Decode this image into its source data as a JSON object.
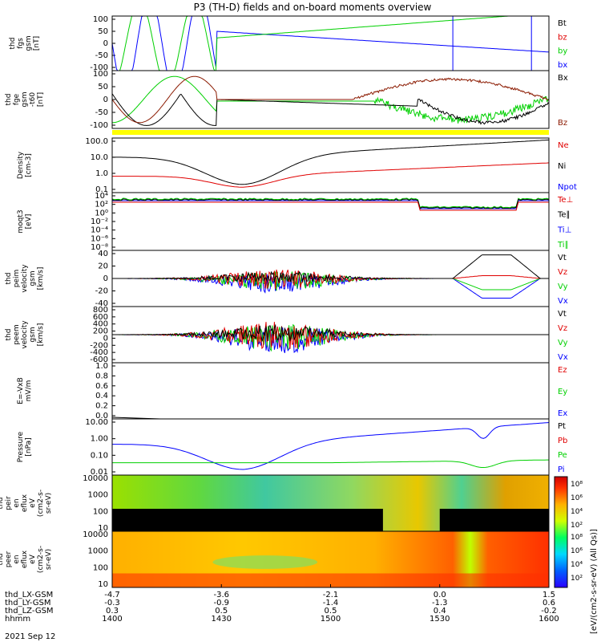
{
  "title": "P3 (TH-D) fields and on-board moments overview",
  "date": "2021 Sep 12",
  "colors": {
    "black": "#000000",
    "red": "#e00000",
    "green": "#00d000",
    "blue": "#0000ff",
    "yellow": "#ffff00",
    "darkred": "#8b1a00"
  },
  "chart_data": {
    "type": "line",
    "x_ticks": [
      "1400",
      "1430",
      "1500",
      "1530",
      "1600"
    ],
    "x_row_labels": [
      "thd_LX-GSM",
      "thd_LY-GSM",
      "thd_LZ-GSM",
      "hhmm"
    ],
    "x_rows": [
      [
        "-4.7",
        "-3.6",
        "-2.1",
        "0.0",
        "1.5"
      ],
      [
        "-0.3",
        "-0.9",
        "-1.4",
        "-1.3",
        "0.6"
      ],
      [
        "0.3",
        "0.5",
        "0.5",
        "0.4",
        "-0.2"
      ],
      [
        "1400",
        "1430",
        "1500",
        "1530",
        "1600"
      ]
    ],
    "panels": [
      {
        "id": "fgs",
        "ylabel": [
          "thd",
          "fgs",
          "gsm",
          "[nT]"
        ],
        "yticks": [
          "100",
          "50",
          "0",
          "-50",
          "-100"
        ],
        "ylim": [
          -100,
          100
        ],
        "legend": [
          {
            "name": "Bt",
            "color": "#000000"
          },
          {
            "name": "bz",
            "color": "#e00000"
          },
          {
            "name": "by",
            "color": "#00d000"
          },
          {
            "name": "bx",
            "color": "#0000ff"
          }
        ]
      },
      {
        "id": "fge",
        "ylabel": [
          "thd",
          "fge",
          "gsm",
          "-t60",
          "[nT]"
        ],
        "yticks": [
          "100",
          "50",
          "0",
          "-50",
          "-100"
        ],
        "ylim": [
          -125,
          125
        ],
        "legend": [
          {
            "name": "Bx",
            "color": "#000000"
          },
          {
            "name": "Bz",
            "color": "#8b1a00"
          }
        ]
      },
      {
        "id": "density",
        "ylabel": [
          "Density",
          "[cm-3]"
        ],
        "yticks": [
          "100.0",
          "10.0",
          "1.0",
          "0.1"
        ],
        "ylim": [
          0.1,
          200
        ],
        "log": true,
        "legend": [
          {
            "name": "Ne",
            "color": "#e00000"
          },
          {
            "name": "Ni",
            "color": "#000000"
          },
          {
            "name": "Npot",
            "color": "#0000ff"
          }
        ]
      },
      {
        "id": "temp",
        "ylabel": [
          "moqt3",
          "[eV]"
        ],
        "yticks": [
          "10⁴",
          "10²",
          "10⁰",
          "10⁻²",
          "10⁻⁴",
          "10⁻⁶",
          "10⁻⁸"
        ],
        "log": true,
        "legend": [
          {
            "name": "Te⊥",
            "color": "#e00000"
          },
          {
            "name": "Te∥",
            "color": "#000000"
          },
          {
            "name": "Ti⊥",
            "color": "#0000ff"
          },
          {
            "name": "Ti∥",
            "color": "#00d000"
          }
        ]
      },
      {
        "id": "peim",
        "ylabel": [
          "thd",
          "peim",
          "velocity",
          "gsm",
          "[km/s]"
        ],
        "yticks": [
          "40",
          "20",
          "0",
          "-20",
          "-40"
        ],
        "ylim": [
          -45,
          45
        ],
        "legend": [
          {
            "name": "Vt",
            "color": "#000000"
          },
          {
            "name": "Vz",
            "color": "#e00000"
          },
          {
            "name": "Vy",
            "color": "#00d000"
          },
          {
            "name": "Vx",
            "color": "#0000ff"
          }
        ]
      },
      {
        "id": "peem",
        "ylabel": [
          "thd",
          "peem",
          "velocity",
          "gsm",
          "[km/s]"
        ],
        "yticks": [
          "800",
          "600",
          "400",
          "200",
          "0",
          "-200",
          "-400",
          "-600"
        ],
        "ylim": [
          -650,
          850
        ],
        "legend": [
          {
            "name": "Vt",
            "color": "#000000"
          },
          {
            "name": "Vz",
            "color": "#e00000"
          },
          {
            "name": "Vy",
            "color": "#00d000"
          },
          {
            "name": "Vx",
            "color": "#0000ff"
          }
        ]
      },
      {
        "id": "efield",
        "ylabel": [
          "E=-VxB",
          "mV/m"
        ],
        "yticks": [
          "1.0",
          "0.8",
          "0.6",
          "0.4",
          "0.2",
          "0.0"
        ],
        "ylim": [
          0,
          1
        ],
        "legend": [
          {
            "name": "Ez",
            "color": "#e00000"
          },
          {
            "name": "Ey",
            "color": "#00d000"
          },
          {
            "name": "Ex",
            "color": "#0000ff"
          }
        ]
      },
      {
        "id": "pressure",
        "ylabel": [
          "Pressure",
          "[nPa]"
        ],
        "yticks": [
          "10.00",
          "1.00",
          "0.10",
          "0.01"
        ],
        "log": true,
        "legend": [
          {
            "name": "Pt",
            "color": "#000000"
          },
          {
            "name": "Pb",
            "color": "#e00000"
          },
          {
            "name": "Pe",
            "color": "#00d000"
          },
          {
            "name": "Pi",
            "color": "#0000ff"
          }
        ]
      },
      {
        "id": "peir",
        "ylabel": [
          "thd",
          "peir",
          "en",
          "eflux",
          "eV",
          "(cm2-s-",
          "sr-eV)"
        ],
        "yticks": [
          "10000",
          "1000",
          "100",
          "10"
        ],
        "log": true,
        "kind": "spectrogram"
      },
      {
        "id": "peer",
        "ylabel": [
          "thd",
          "peer",
          "en",
          "eflux",
          "eV",
          "(cm2-s-",
          "sr-eV)"
        ],
        "yticks": [
          "10000",
          "1000",
          "100",
          "10"
        ],
        "log": true,
        "kind": "spectrogram"
      }
    ],
    "colorbar": {
      "label": "[eV/(cm2-s-sr-eV) (All Qs)]",
      "ticks_top": [
        "10⁸",
        "10⁶",
        "10⁴",
        "10²"
      ],
      "ticks_bottom": [
        "10⁸",
        "10⁶",
        "10⁴",
        "10²"
      ]
    }
  }
}
